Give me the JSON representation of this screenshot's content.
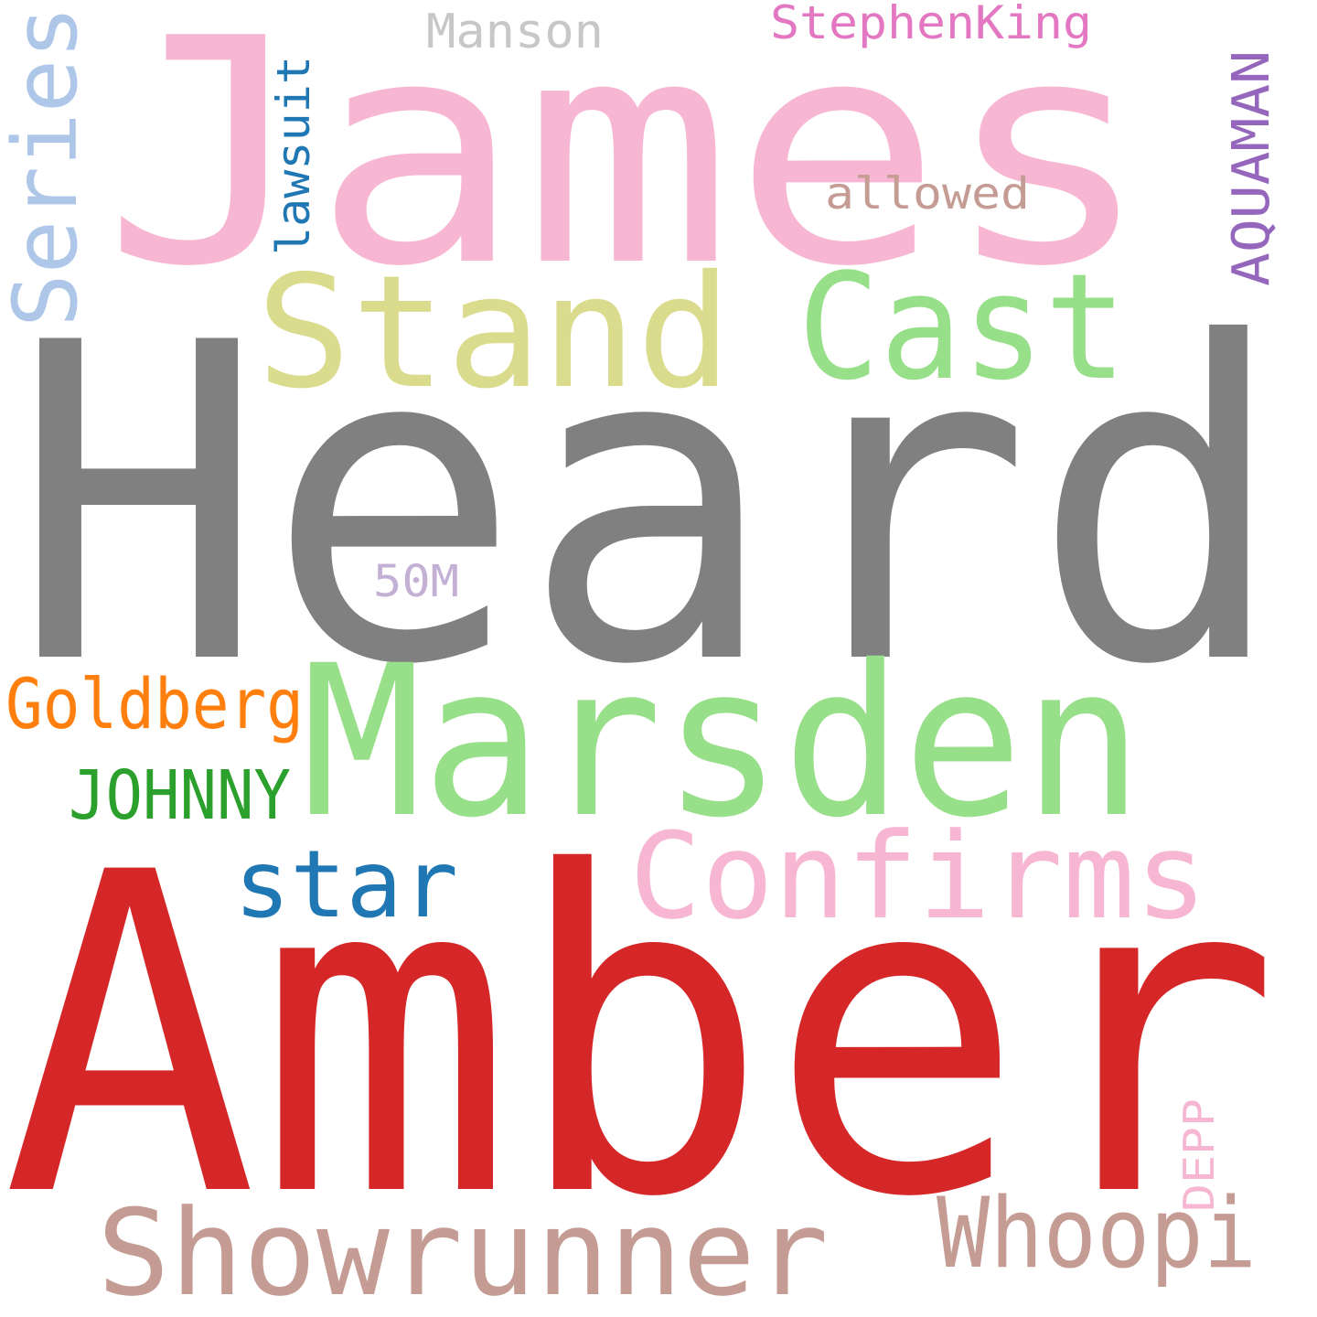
{
  "words": [
    {
      "text": "Heard",
      "color": "#808080"
    },
    {
      "text": "Amber",
      "color": "#d62728"
    },
    {
      "text": "James",
      "color": "#f7b6d2"
    },
    {
      "text": "Marsden",
      "color": "#98df8a"
    },
    {
      "text": "Stand",
      "color": "#dbdb8d"
    },
    {
      "text": "Cast",
      "color": "#98df8a"
    },
    {
      "text": "Confirms",
      "color": "#f7b6d2"
    },
    {
      "text": "Showrunner",
      "color": "#c49c94"
    },
    {
      "text": "Series",
      "color": "#aec7e8"
    },
    {
      "text": "Whoopi",
      "color": "#c49c94"
    },
    {
      "text": "star",
      "color": "#1f77b4"
    },
    {
      "text": "Goldberg",
      "color": "#ff7f0e"
    },
    {
      "text": "JOHNNY",
      "color": "#2ca02c"
    },
    {
      "text": "lawsuit",
      "color": "#1f77b4"
    },
    {
      "text": "AQUAMAN",
      "color": "#9467bd"
    },
    {
      "text": "StephenKing",
      "color": "#e377c2"
    },
    {
      "text": "Manson",
      "color": "#c7c7c7"
    },
    {
      "text": "allowed",
      "color": "#c49c94"
    },
    {
      "text": "50M",
      "color": "#c5b0d5"
    },
    {
      "text": "DEPP",
      "color": "#f7b6d2"
    }
  ]
}
